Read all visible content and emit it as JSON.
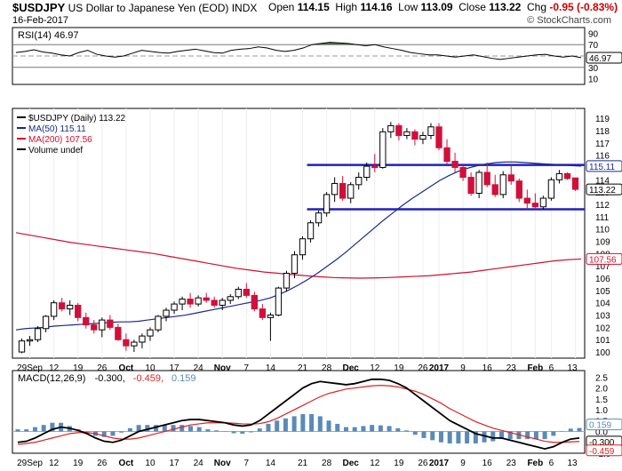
{
  "header": {
    "symbol": "$USDJPY",
    "name": "US Dollar to Japanese Yen (EOD)",
    "exchange": "INDX",
    "date": "16-Feb-2017",
    "watermark": "© StockCharts.com",
    "open_label": "Open",
    "open": "114.15",
    "high_label": "High",
    "high": "114.16",
    "low_label": "Low",
    "low": "113.09",
    "close_label": "Close",
    "close": "113.22",
    "chg_label": "Chg",
    "chg": "-0.95 (-0.83%)"
  },
  "colors": {
    "up": "#ffffff",
    "down": "#d0103a",
    "ma50": "#1a2a8c",
    "ma200": "#d01030",
    "rsi_fill": "#4a7a4a",
    "support": "#2020c0",
    "macd": "#000000",
    "signal": "#e02020",
    "hist": "#5a8ab8"
  },
  "chart_data": [
    {
      "type": "line",
      "title": "RSI(14) 46.97",
      "ylim": [
        0,
        100
      ],
      "yticks": [
        90,
        70,
        50,
        30,
        10
      ],
      "levels": [
        70,
        30
      ],
      "last_label": "46.97",
      "values": [
        56,
        58,
        61,
        57,
        55,
        52,
        50,
        56,
        60,
        53,
        50,
        48,
        50,
        55,
        60,
        58,
        56,
        55,
        58,
        60,
        62,
        59,
        56,
        55,
        60,
        62,
        63,
        66,
        64,
        60,
        58,
        60,
        64,
        70,
        72,
        74,
        73,
        72,
        70,
        68,
        70,
        66,
        63,
        60,
        56,
        54,
        52,
        52,
        50,
        48,
        50,
        52,
        49,
        46,
        44,
        46,
        48,
        50,
        52,
        53,
        50,
        48,
        50,
        47
      ]
    },
    {
      "type": "candlestick",
      "legend": [
        "$USDJPY (Daily) 113.22",
        "MA(50) 115.11",
        "MA(200) 107.56",
        "Volume undef"
      ],
      "ylim": [
        99.5,
        119.8
      ],
      "yticks": [
        100,
        101,
        102,
        103,
        104,
        105,
        106,
        107,
        108,
        109,
        110,
        111,
        112,
        113,
        114,
        115,
        116,
        117,
        118,
        119
      ],
      "last_labels": [
        "115.11",
        "113.22",
        "107.56"
      ],
      "support_levels": [
        115.2,
        111.6
      ],
      "xticks": [
        "29Sep",
        "12",
        "19",
        "26",
        "Oct",
        "10",
        "17",
        "24",
        "Nov",
        "7",
        "14",
        "21",
        "28",
        "Dec",
        "12",
        "19",
        "26",
        "2017",
        "9",
        "16",
        "23",
        "Feb",
        "6",
        "13"
      ],
      "candles": [
        [
          100.0,
          101.1,
          99.9,
          100.9
        ],
        [
          100.9,
          101.3,
          100.5,
          101.0
        ],
        [
          101.0,
          102.1,
          100.8,
          101.9
        ],
        [
          101.9,
          103.0,
          101.6,
          102.9
        ],
        [
          102.9,
          104.2,
          102.6,
          104.0
        ],
        [
          104.0,
          104.4,
          103.3,
          103.5
        ],
        [
          103.5,
          104.2,
          103.0,
          103.8
        ],
        [
          103.8,
          104.0,
          102.5,
          102.8
        ],
        [
          102.8,
          103.2,
          101.9,
          102.2
        ],
        [
          102.2,
          102.6,
          101.5,
          101.8
        ],
        [
          101.8,
          102.8,
          101.2,
          102.6
        ],
        [
          102.6,
          103.0,
          101.8,
          102.0
        ],
        [
          102.0,
          102.3,
          100.9,
          101.0
        ],
        [
          101.0,
          101.5,
          100.1,
          100.5
        ],
        [
          100.5,
          101.0,
          100.0,
          100.8
        ],
        [
          100.8,
          101.5,
          100.3,
          101.3
        ],
        [
          101.3,
          102.0,
          100.9,
          101.8
        ],
        [
          101.8,
          103.0,
          101.6,
          102.9
        ],
        [
          102.9,
          103.6,
          102.5,
          103.4
        ],
        [
          103.4,
          104.1,
          103.1,
          103.9
        ],
        [
          103.9,
          104.5,
          103.4,
          104.3
        ],
        [
          104.3,
          104.8,
          103.6,
          103.9
        ],
        [
          103.9,
          104.6,
          103.7,
          104.4
        ],
        [
          104.4,
          104.8,
          104.0,
          104.2
        ],
        [
          104.2,
          104.5,
          103.6,
          103.8
        ],
        [
          103.8,
          104.4,
          103.4,
          104.2
        ],
        [
          104.2,
          104.7,
          103.9,
          104.5
        ],
        [
          104.5,
          105.3,
          104.3,
          105.1
        ],
        [
          105.1,
          105.6,
          104.4,
          104.6
        ],
        [
          104.6,
          104.9,
          103.3,
          103.5
        ],
        [
          103.5,
          103.9,
          102.6,
          102.8
        ],
        [
          102.8,
          103.2,
          100.9,
          103.0
        ],
        [
          103.0,
          105.3,
          102.9,
          105.2
        ],
        [
          105.2,
          106.6,
          104.9,
          106.4
        ],
        [
          106.4,
          108.2,
          106.0,
          107.9
        ],
        [
          107.9,
          109.4,
          107.5,
          109.2
        ],
        [
          109.2,
          110.7,
          108.9,
          110.5
        ],
        [
          110.5,
          111.5,
          110.2,
          111.3
        ],
        [
          111.3,
          113.0,
          111.0,
          112.8
        ],
        [
          112.8,
          114.2,
          112.2,
          113.7
        ],
        [
          113.7,
          114.3,
          112.3,
          112.5
        ],
        [
          112.5,
          113.8,
          112.1,
          113.6
        ],
        [
          113.6,
          114.6,
          113.2,
          114.2
        ],
        [
          114.2,
          115.4,
          113.9,
          115.1
        ],
        [
          115.1,
          116.1,
          114.6,
          115.0
        ],
        [
          115.0,
          118.2,
          114.9,
          117.9
        ],
        [
          117.9,
          118.7,
          117.4,
          118.4
        ],
        [
          118.4,
          118.6,
          117.2,
          117.6
        ],
        [
          117.6,
          118.2,
          117.3,
          117.9
        ],
        [
          117.9,
          118.1,
          116.8,
          117.3
        ],
        [
          117.3,
          117.9,
          116.9,
          117.6
        ],
        [
          117.6,
          118.6,
          117.3,
          118.3
        ],
        [
          118.3,
          118.6,
          116.4,
          116.6
        ],
        [
          116.6,
          117.3,
          115.3,
          115.5
        ],
        [
          115.5,
          116.2,
          114.6,
          115.0
        ],
        [
          115.0,
          115.3,
          113.9,
          114.2
        ],
        [
          114.2,
          114.6,
          112.7,
          112.9
        ],
        [
          112.9,
          114.8,
          112.5,
          114.6
        ],
        [
          114.6,
          115.4,
          113.4,
          113.6
        ],
        [
          113.6,
          114.4,
          112.6,
          112.8
        ],
        [
          112.8,
          114.7,
          112.5,
          114.4
        ],
        [
          114.4,
          115.1,
          113.6,
          113.9
        ],
        [
          113.9,
          114.1,
          112.2,
          112.5
        ],
        [
          112.5,
          113.2,
          111.6,
          112.1
        ],
        [
          112.1,
          112.9,
          111.6,
          111.8
        ],
        [
          111.8,
          112.7,
          111.6,
          112.5
        ],
        [
          112.5,
          114.2,
          112.3,
          114.0
        ],
        [
          114.0,
          114.8,
          113.7,
          114.5
        ],
        [
          114.5,
          114.6,
          114.0,
          114.1
        ],
        [
          114.15,
          114.16,
          113.09,
          113.22
        ]
      ],
      "ma50": [
        101.8,
        101.9,
        101.95,
        102.0,
        102.1,
        102.15,
        102.2,
        102.25,
        102.3,
        102.35,
        102.4,
        102.45,
        102.45,
        102.5,
        102.6,
        102.7,
        102.8,
        102.9,
        103.0,
        103.15,
        103.3,
        103.45,
        103.6,
        103.75,
        103.9,
        104.05,
        104.2,
        104.4,
        104.7,
        105.05,
        105.45,
        105.9,
        106.4,
        106.95,
        107.5,
        108.1,
        108.75,
        109.4,
        110.05,
        110.7,
        111.3,
        111.9,
        112.45,
        112.95,
        113.45,
        113.95,
        114.35,
        114.7,
        114.95,
        115.15,
        115.3,
        115.4,
        115.45,
        115.45,
        115.4,
        115.35,
        115.3,
        115.25,
        115.2,
        115.15,
        115.11
      ],
      "ma200": [
        109.7,
        109.5,
        109.3,
        109.1,
        108.9,
        108.75,
        108.6,
        108.45,
        108.3,
        108.15,
        108.0,
        107.8,
        107.6,
        107.4,
        107.2,
        107.0,
        106.8,
        106.65,
        106.5,
        106.4,
        106.3,
        106.2,
        106.12,
        106.05,
        106.02,
        106.0,
        106.02,
        106.05,
        106.1,
        106.15,
        106.2,
        106.3,
        106.4,
        106.5,
        106.65,
        106.8,
        106.95,
        107.1,
        107.25,
        107.4,
        107.5,
        107.56
      ]
    },
    {
      "type": "line",
      "title": "MACD(12,26,9) -0.300, -0.459, 0.159",
      "title_parts": [
        "MACD(12,26,9)",
        "-0.300",
        "-0.459",
        "0.159"
      ],
      "ylim": [
        -1.0,
        2.8
      ],
      "yticks": [
        2.5,
        2.0,
        1.5,
        1.0,
        0.5,
        0.0,
        -0.5,
        -1.0
      ],
      "last_labels": [
        "0.159",
        "-0.300",
        "-0.459"
      ],
      "xticks": [
        "29Sep",
        "12",
        "19",
        "26",
        "Oct",
        "10",
        "17",
        "24",
        "Nov",
        "7",
        "14",
        "21",
        "28",
        "Dec",
        "12",
        "19",
        "26",
        "2017",
        "9",
        "16",
        "23",
        "Feb",
        "6",
        "13"
      ],
      "macd": [
        -0.5,
        -0.45,
        -0.3,
        -0.1,
        0.1,
        0.2,
        0.15,
        0.05,
        -0.1,
        -0.3,
        -0.45,
        -0.5,
        -0.4,
        -0.2,
        0.0,
        0.1,
        0.2,
        0.3,
        0.4,
        0.5,
        0.55,
        0.55,
        0.5,
        0.45,
        0.4,
        0.3,
        0.25,
        0.3,
        0.5,
        0.8,
        1.1,
        1.4,
        1.7,
        2.0,
        2.2,
        2.3,
        2.25,
        2.2,
        2.15,
        2.2,
        2.3,
        2.4,
        2.4,
        2.35,
        2.2,
        2.0,
        1.7,
        1.4,
        1.1,
        0.8,
        0.5,
        0.3,
        0.1,
        -0.1,
        -0.2,
        -0.3,
        -0.3,
        -0.4,
        -0.5,
        -0.6,
        -0.7,
        -0.8,
        -0.7,
        -0.5,
        -0.35,
        -0.3
      ],
      "signal": [
        -0.6,
        -0.55,
        -0.5,
        -0.4,
        -0.3,
        -0.2,
        -0.1,
        -0.05,
        -0.05,
        -0.1,
        -0.2,
        -0.3,
        -0.35,
        -0.35,
        -0.3,
        -0.2,
        -0.1,
        0.0,
        0.1,
        0.2,
        0.3,
        0.35,
        0.4,
        0.4,
        0.4,
        0.38,
        0.35,
        0.34,
        0.36,
        0.45,
        0.6,
        0.8,
        1.0,
        1.2,
        1.4,
        1.6,
        1.75,
        1.85,
        1.95,
        2.0,
        2.05,
        2.1,
        2.12,
        2.1,
        2.05,
        1.95,
        1.85,
        1.7,
        1.5,
        1.3,
        1.05,
        0.85,
        0.65,
        0.45,
        0.3,
        0.15,
        0.05,
        -0.05,
        -0.15,
        -0.25,
        -0.35,
        -0.45,
        -0.5,
        -0.5,
        -0.48,
        -0.459
      ]
    }
  ]
}
